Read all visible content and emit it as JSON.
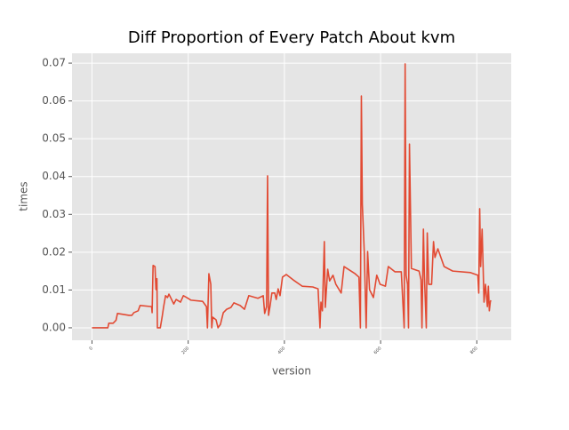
{
  "chart_data": {
    "type": "line",
    "title": "Diff Proportion of Every Patch About kvm",
    "x_label": "version",
    "y_label": "times",
    "color": "#e24a33",
    "grid": true,
    "xlim": [
      -41.5,
      871.5
    ],
    "ylim": [
      -0.0033,
      0.0726
    ],
    "xticks": [
      0,
      200,
      400,
      600,
      800
    ],
    "yticks": [
      {
        "value": 0,
        "label": "0.00"
      },
      {
        "value": 0.01,
        "label": "0.01"
      },
      {
        "value": 0.02,
        "label": "0.02"
      },
      {
        "value": 0.03,
        "label": "0.03"
      },
      {
        "value": 0.04,
        "label": "0.04"
      },
      {
        "value": 0.05,
        "label": "0.05"
      },
      {
        "value": 0.06,
        "label": "0.06"
      },
      {
        "value": 0.07,
        "label": "0.07"
      }
    ],
    "x": [
      0,
      33,
      35,
      44,
      50,
      53,
      77,
      83,
      87,
      96,
      100,
      124,
      125,
      127,
      131,
      133,
      135,
      136,
      142,
      146,
      149,
      153,
      157,
      160,
      170,
      175,
      184,
      190,
      197,
      206,
      230,
      238,
      240,
      243,
      247,
      249,
      251,
      258,
      262,
      267,
      273,
      280,
      289,
      295,
      308,
      317,
      326,
      345,
      356,
      359,
      363,
      365,
      367,
      370,
      374,
      380,
      383,
      387,
      391,
      396,
      404,
      418,
      437,
      459,
      470,
      474,
      476,
      479,
      483,
      485,
      490,
      494,
      501,
      507,
      518,
      524,
      547,
      555,
      558,
      560,
      562,
      566,
      570,
      573,
      577,
      585,
      592,
      599,
      610,
      616,
      630,
      643,
      649,
      651,
      653,
      656,
      658,
      660,
      664,
      673,
      680,
      684,
      686,
      689,
      691,
      695,
      697,
      700,
      706,
      710,
      713,
      719,
      732,
      750,
      787,
      802,
      804,
      806,
      808,
      811,
      815,
      818,
      822,
      824,
      826,
      828,
      829
    ],
    "values": [
      0,
      0,
      0.0012,
      0.0012,
      0.002,
      0.0038,
      0.0033,
      0.0033,
      0.004,
      0.0045,
      0.0059,
      0.0056,
      0.004,
      0.0165,
      0.0162,
      0.0101,
      0.013,
      0,
      0,
      0.003,
      0.0056,
      0.0085,
      0.008,
      0.0089,
      0.0063,
      0.0075,
      0.0068,
      0.0085,
      0.008,
      0.0073,
      0.007,
      0.0056,
      0,
      0.0143,
      0.0115,
      0,
      0.0028,
      0.0021,
      0,
      0.0009,
      0.004,
      0.0049,
      0.0054,
      0.0066,
      0.0059,
      0.0049,
      0.0085,
      0.0078,
      0.0085,
      0.0038,
      0.0056,
      0.0402,
      0.0033,
      0.0056,
      0.0092,
      0.0092,
      0.0075,
      0.0103,
      0.0085,
      0.0134,
      0.0141,
      0.0127,
      0.011,
      0.0108,
      0.0103,
      0,
      0.0068,
      0.0045,
      0.0228,
      0.0054,
      0.0155,
      0.0124,
      0.0139,
      0.0115,
      0.0092,
      0.0162,
      0.0143,
      0.0134,
      0,
      0.0613,
      0.0327,
      0.0202,
      0,
      0.0202,
      0.0101,
      0.008,
      0.0139,
      0.0115,
      0.011,
      0.0162,
      0.0148,
      0.0148,
      0,
      0.0698,
      0.0139,
      0.0115,
      0,
      0.0486,
      0.0157,
      0.0153,
      0.015,
      0.0127,
      0,
      0.0261,
      0.0139,
      0,
      0.0251,
      0.0115,
      0.0115,
      0.0228,
      0.0186,
      0.0209,
      0.0162,
      0.015,
      0.0146,
      0.0139,
      0.0092,
      0.0315,
      0.0162,
      0.0261,
      0.0068,
      0.0115,
      0.0056,
      0.011,
      0.0045,
      0.0068,
      0.0073
    ]
  }
}
